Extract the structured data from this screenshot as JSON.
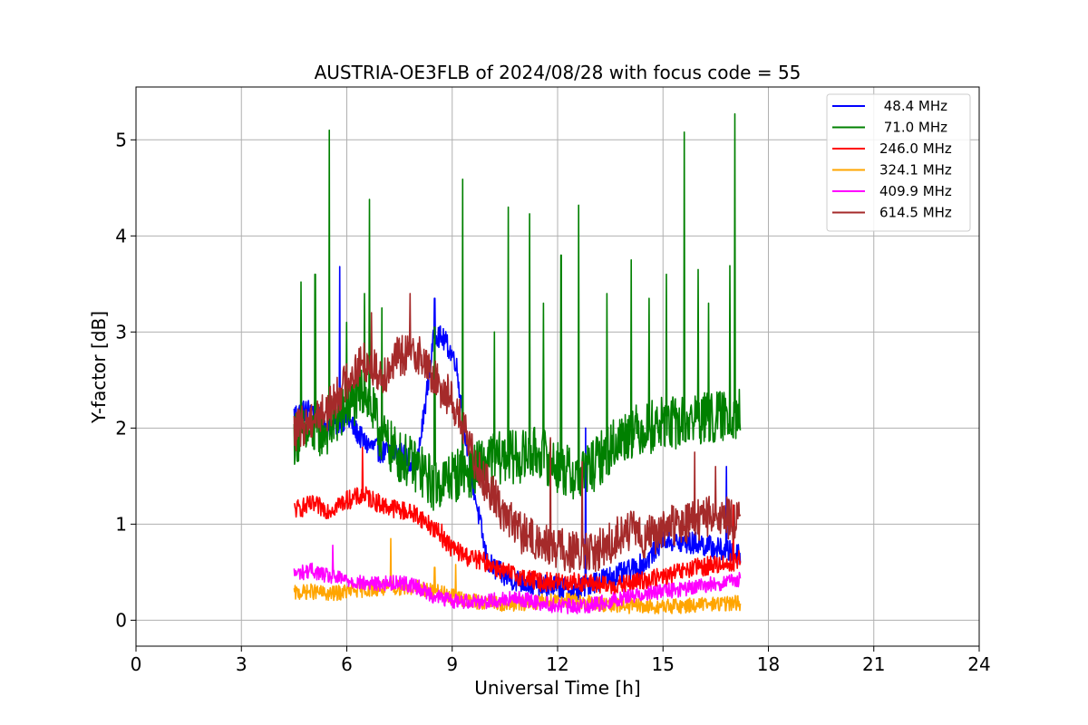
{
  "chart_data": {
    "type": "line",
    "title": "AUSTRIA-OE3FLB of 2024/08/28 with focus code = 55",
    "xlabel": "Universal Time [h]",
    "ylabel": "Y-factor [dB]",
    "xlim": [
      0,
      24
    ],
    "ylim": [
      -0.27,
      5.55
    ],
    "x_ticks": [
      0,
      3,
      6,
      9,
      12,
      15,
      18,
      21,
      24
    ],
    "x_tick_labels": [
      "0",
      "3",
      "6",
      "9",
      "12",
      "15",
      "18",
      "21",
      "24"
    ],
    "y_ticks": [
      0,
      1,
      2,
      3,
      4,
      5
    ],
    "y_tick_labels": [
      "0",
      "1",
      "2",
      "3",
      "4",
      "5"
    ],
    "grid": true,
    "legend_position": "top-right",
    "series": [
      {
        "name": " 48.4 MHz",
        "color": "#0000ff",
        "x": [
          4.5,
          5.0,
          5.5,
          6.0,
          6.5,
          7.0,
          7.5,
          8.0,
          8.5,
          8.8,
          9.1,
          9.5,
          10.0,
          10.5,
          11.0,
          11.5,
          12.0,
          12.5,
          13.0,
          13.5,
          14.0,
          14.5,
          15.0,
          15.5,
          16.0,
          16.5,
          17.0,
          17.2
        ],
        "y": [
          2.15,
          2.2,
          2.0,
          2.1,
          1.85,
          1.75,
          1.75,
          1.6,
          3.0,
          2.9,
          2.7,
          1.6,
          0.6,
          0.45,
          0.4,
          0.35,
          0.35,
          0.3,
          0.4,
          0.45,
          0.5,
          0.6,
          0.85,
          0.8,
          0.8,
          0.75,
          0.7,
          0.7
        ],
        "spikes": [
          [
            5.8,
            3.68
          ],
          [
            8.5,
            3.35
          ],
          [
            12.8,
            2.0
          ],
          [
            16.8,
            1.6
          ]
        ]
      },
      {
        "name": " 71.0 MHz",
        "color": "#008000",
        "x": [
          4.5,
          5.0,
          5.5,
          6.0,
          6.5,
          7.0,
          7.5,
          8.0,
          8.5,
          9.0,
          9.5,
          10.0,
          10.5,
          11.0,
          11.5,
          12.0,
          12.5,
          13.0,
          13.5,
          14.0,
          14.5,
          15.0,
          15.5,
          16.0,
          16.5,
          17.0,
          17.2
        ],
        "y": [
          1.9,
          1.95,
          2.0,
          2.2,
          2.4,
          1.9,
          1.7,
          1.6,
          1.4,
          1.5,
          1.55,
          1.65,
          1.7,
          1.7,
          1.75,
          1.6,
          1.5,
          1.6,
          1.8,
          1.95,
          2.0,
          2.05,
          2.05,
          2.1,
          2.1,
          2.15,
          2.15
        ],
        "spikes": [
          [
            4.7,
            3.52
          ],
          [
            5.1,
            3.6
          ],
          [
            5.5,
            5.1
          ],
          [
            6.0,
            3.1
          ],
          [
            6.5,
            3.4
          ],
          [
            6.65,
            4.38
          ],
          [
            7.0,
            3.25
          ],
          [
            8.5,
            3.05
          ],
          [
            9.3,
            4.59
          ],
          [
            10.2,
            3.0
          ],
          [
            10.6,
            4.3
          ],
          [
            11.2,
            4.23
          ],
          [
            11.6,
            3.3
          ],
          [
            12.1,
            3.8
          ],
          [
            12.6,
            4.32
          ],
          [
            13.4,
            3.4
          ],
          [
            14.1,
            3.75
          ],
          [
            14.6,
            3.35
          ],
          [
            15.1,
            3.6
          ],
          [
            15.6,
            5.08
          ],
          [
            16.0,
            3.65
          ],
          [
            16.3,
            3.3
          ],
          [
            16.9,
            3.69
          ],
          [
            17.05,
            5.27
          ]
        ]
      },
      {
        "name": "246.0 MHz",
        "color": "#ff0000",
        "x": [
          4.5,
          5.0,
          5.5,
          6.0,
          6.5,
          7.0,
          7.5,
          8.0,
          8.5,
          9.0,
          9.5,
          10.0,
          10.5,
          11.0,
          11.5,
          12.0,
          12.5,
          13.0,
          13.5,
          14.0,
          14.5,
          15.0,
          15.5,
          16.0,
          16.5,
          17.0,
          17.2
        ],
        "y": [
          1.15,
          1.2,
          1.15,
          1.25,
          1.3,
          1.2,
          1.15,
          1.1,
          0.95,
          0.75,
          0.65,
          0.6,
          0.5,
          0.45,
          0.4,
          0.4,
          0.4,
          0.38,
          0.35,
          0.38,
          0.42,
          0.45,
          0.5,
          0.55,
          0.58,
          0.6,
          0.65
        ],
        "spikes": [
          [
            6.45,
            1.8
          ],
          [
            8.7,
            1.0
          ],
          [
            17.0,
            1.2
          ]
        ]
      },
      {
        "name": "324.1 MHz",
        "color": "#ffa500",
        "x": [
          4.5,
          5.0,
          5.5,
          6.0,
          6.5,
          7.0,
          7.5,
          8.0,
          8.5,
          9.0,
          9.5,
          10.0,
          10.5,
          11.0,
          11.5,
          12.0,
          12.5,
          13.0,
          13.5,
          14.0,
          14.5,
          15.0,
          15.5,
          16.0,
          16.5,
          17.0,
          17.2
        ],
        "y": [
          0.28,
          0.3,
          0.27,
          0.3,
          0.32,
          0.33,
          0.34,
          0.34,
          0.3,
          0.25,
          0.2,
          0.18,
          0.17,
          0.17,
          0.2,
          0.22,
          0.2,
          0.18,
          0.15,
          0.15,
          0.14,
          0.14,
          0.15,
          0.16,
          0.17,
          0.18,
          0.18
        ],
        "spikes": [
          [
            7.25,
            0.85
          ],
          [
            8.5,
            0.55
          ],
          [
            9.1,
            0.58
          ]
        ]
      },
      {
        "name": "409.9 MHz",
        "color": "#ff00ff",
        "x": [
          4.5,
          5.0,
          5.5,
          6.0,
          6.5,
          7.0,
          7.5,
          8.0,
          8.5,
          9.0,
          9.5,
          10.0,
          10.5,
          11.0,
          11.5,
          12.0,
          12.5,
          13.0,
          13.5,
          14.0,
          14.5,
          15.0,
          15.5,
          16.0,
          16.5,
          17.0,
          17.2
        ],
        "y": [
          0.48,
          0.52,
          0.45,
          0.42,
          0.38,
          0.38,
          0.4,
          0.35,
          0.25,
          0.2,
          0.2,
          0.2,
          0.22,
          0.22,
          0.18,
          0.15,
          0.14,
          0.16,
          0.2,
          0.25,
          0.28,
          0.3,
          0.32,
          0.35,
          0.38,
          0.4,
          0.42
        ],
        "spikes": [
          [
            5.6,
            0.78
          ]
        ]
      },
      {
        "name": "614.5 MHz",
        "color": "#a52a2a",
        "x": [
          4.5,
          5.0,
          5.5,
          6.0,
          6.5,
          7.0,
          7.5,
          8.0,
          8.5,
          9.0,
          9.5,
          10.0,
          10.5,
          11.0,
          11.5,
          12.0,
          12.5,
          13.0,
          13.5,
          14.0,
          14.5,
          15.0,
          15.5,
          16.0,
          16.5,
          17.0,
          17.2
        ],
        "y": [
          1.95,
          2.1,
          2.2,
          2.5,
          2.7,
          2.55,
          2.75,
          2.8,
          2.5,
          2.3,
          1.8,
          1.4,
          1.1,
          0.9,
          0.8,
          0.75,
          0.7,
          0.7,
          0.8,
          0.95,
          0.85,
          0.95,
          1.0,
          1.05,
          1.1,
          1.05,
          1.0
        ],
        "spikes": [
          [
            6.7,
            3.2
          ],
          [
            7.8,
            3.4
          ],
          [
            11.8,
            1.9
          ],
          [
            12.7,
            1.65
          ],
          [
            15.9,
            1.75
          ],
          [
            16.5,
            1.6
          ]
        ]
      }
    ]
  }
}
